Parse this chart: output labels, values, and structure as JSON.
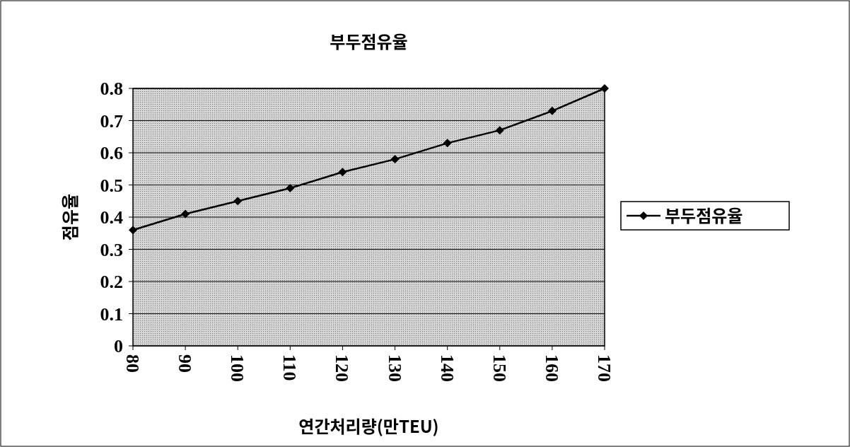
{
  "chart_data": {
    "type": "line",
    "title": "부두점유율",
    "xlabel": "연간처리량(만TEU)",
    "ylabel": "점유율",
    "x": [
      80,
      90,
      100,
      110,
      120,
      130,
      140,
      150,
      160,
      170
    ],
    "series": [
      {
        "name": "부두점유율",
        "color": "#000000",
        "values": [
          0.36,
          0.41,
          0.45,
          0.49,
          0.54,
          0.58,
          0.63,
          0.67,
          0.73,
          0.8
        ]
      }
    ],
    "xlim": [
      80,
      170
    ],
    "xticks": [
      80,
      90,
      100,
      110,
      120,
      130,
      140,
      150,
      160,
      170
    ],
    "ylim": [
      0,
      0.8
    ],
    "yticks": [
      0,
      0.1,
      0.2,
      0.3,
      0.4,
      0.5,
      0.6,
      0.7,
      0.8
    ],
    "grid": "y",
    "legend": "right",
    "marker": "diamond",
    "line_style": "solid"
  }
}
